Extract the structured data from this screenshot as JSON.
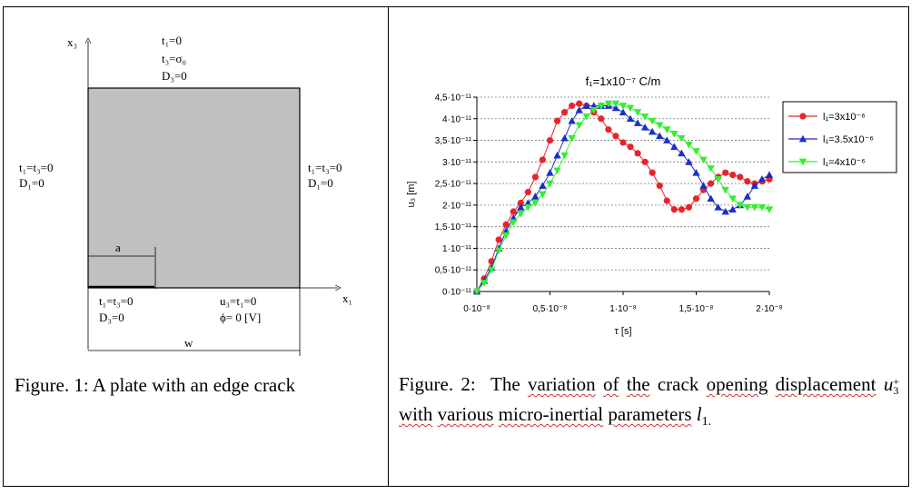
{
  "figure1": {
    "caption": "Figure. 1: A plate with an edge crack",
    "axis_x": "x₁",
    "axis_y": "x₃",
    "top_bc": [
      "t₁=0",
      "t₃=σ₀",
      "D₃=0"
    ],
    "left_bc": [
      "t₁=t₃=0",
      "D₁=0"
    ],
    "right_bc": [
      "t₁=t₃=0",
      "D₁=0"
    ],
    "bottom_left_bc": [
      "t₁=t₃=0",
      "D₃=0"
    ],
    "bottom_right_bc": [
      "u₃=t₁=0",
      "ϕ= 0 [V]"
    ],
    "crack_label": "a",
    "width_label": "w"
  },
  "figure2": {
    "caption_words": {
      "w1": "Figure. 2:",
      "w2": "The",
      "w3": "variation",
      "w4": "of",
      "w5": "the",
      "w6": "crack",
      "w7": "opening",
      "w8": "displacement",
      "w9": "u",
      "w9sub": "3",
      "w9sup": "+",
      "w10": "with",
      "w11": "various",
      "w12": "micro-inertial",
      "w13": "parameters",
      "w14": "l",
      "w14sub": "1."
    }
  },
  "chart_data": {
    "type": "line",
    "title": "f₁=1x10⁻⁷ C/m",
    "xlabel": "τ [s]",
    "ylabel": "u₃ [m]",
    "xlim": [
      0,
      2e-08
    ],
    "ylim": [
      0,
      4.5e-11
    ],
    "x_ticks": [
      "0·10⁻⁸",
      "0,5·10⁻⁸",
      "1·10⁻⁸",
      "1,5·10⁻⁸",
      "2·10⁻⁸"
    ],
    "y_ticks": [
      "0·10⁻¹¹",
      "0,5·10⁻¹¹",
      "1·10⁻¹¹",
      "1,5·10⁻¹¹",
      "2·10⁻¹¹",
      "2,5·10⁻¹¹",
      "3·10⁻¹¹",
      "3,5·10⁻¹¹",
      "4·10⁻¹¹",
      "4,5·10⁻¹¹"
    ],
    "grid": true,
    "legend": "right",
    "series": [
      {
        "name": "l₁=3x10⁻⁶",
        "color": "#e8242a",
        "marker": "circle",
        "x": [
          0,
          0.05,
          0.1,
          0.15,
          0.2,
          0.25,
          0.3,
          0.35,
          0.4,
          0.45,
          0.5,
          0.55,
          0.6,
          0.65,
          0.7,
          0.75,
          0.8,
          0.85,
          0.9,
          0.95,
          1.0,
          1.05,
          1.1,
          1.15,
          1.2,
          1.25,
          1.3,
          1.35,
          1.4,
          1.45,
          1.5,
          1.55,
          1.6,
          1.65,
          1.7,
          1.75,
          1.8,
          1.85,
          1.9,
          1.95,
          2.0
        ],
        "y": [
          0.0,
          0.3,
          0.7,
          1.2,
          1.55,
          1.85,
          2.05,
          2.3,
          2.65,
          3.05,
          3.5,
          3.95,
          4.15,
          4.3,
          4.35,
          4.3,
          4.15,
          4.0,
          3.75,
          3.6,
          3.45,
          3.35,
          3.2,
          3.0,
          2.75,
          2.45,
          2.1,
          1.9,
          1.9,
          1.95,
          2.15,
          2.35,
          2.5,
          2.65,
          2.75,
          2.7,
          2.65,
          2.55,
          2.5,
          2.55,
          2.6
        ]
      },
      {
        "name": "l₁=3.5x10⁻⁶",
        "color": "#1a2fc8",
        "marker": "triangle-up",
        "x": [
          0,
          0.05,
          0.1,
          0.15,
          0.2,
          0.25,
          0.3,
          0.35,
          0.4,
          0.45,
          0.5,
          0.55,
          0.6,
          0.65,
          0.7,
          0.75,
          0.8,
          0.85,
          0.9,
          0.95,
          1.0,
          1.05,
          1.1,
          1.15,
          1.2,
          1.25,
          1.3,
          1.35,
          1.4,
          1.45,
          1.5,
          1.55,
          1.6,
          1.65,
          1.7,
          1.75,
          1.8,
          1.85,
          1.9,
          1.95,
          2.0
        ],
        "y": [
          0.0,
          0.25,
          0.55,
          1.0,
          1.4,
          1.7,
          1.95,
          2.05,
          2.2,
          2.45,
          2.75,
          3.15,
          3.55,
          3.95,
          4.2,
          4.3,
          4.3,
          4.3,
          4.3,
          4.25,
          4.15,
          4.0,
          3.9,
          3.8,
          3.7,
          3.6,
          3.5,
          3.35,
          3.2,
          3.0,
          2.75,
          2.45,
          2.15,
          1.95,
          1.85,
          1.9,
          2.0,
          2.2,
          2.45,
          2.6,
          2.7
        ]
      },
      {
        "name": "l₁=4x10⁻⁶",
        "color": "#33ee33",
        "marker": "triangle-down",
        "x": [
          0,
          0.05,
          0.1,
          0.15,
          0.2,
          0.25,
          0.3,
          0.35,
          0.4,
          0.45,
          0.5,
          0.55,
          0.6,
          0.65,
          0.7,
          0.75,
          0.8,
          0.85,
          0.9,
          0.95,
          1.0,
          1.05,
          1.1,
          1.15,
          1.2,
          1.25,
          1.3,
          1.35,
          1.4,
          1.45,
          1.5,
          1.55,
          1.6,
          1.65,
          1.7,
          1.75,
          1.8,
          1.85,
          1.9,
          1.95,
          2.0
        ],
        "y": [
          0.0,
          0.2,
          0.5,
          0.95,
          1.3,
          1.6,
          1.8,
          1.95,
          2.05,
          2.25,
          2.5,
          2.8,
          3.15,
          3.55,
          3.85,
          4.05,
          4.2,
          4.3,
          4.35,
          4.35,
          4.3,
          4.25,
          4.15,
          4.05,
          3.95,
          3.85,
          3.75,
          3.65,
          3.55,
          3.4,
          3.25,
          3.05,
          2.85,
          2.6,
          2.35,
          2.15,
          2.0,
          1.95,
          1.95,
          1.95,
          1.9
        ]
      }
    ]
  }
}
